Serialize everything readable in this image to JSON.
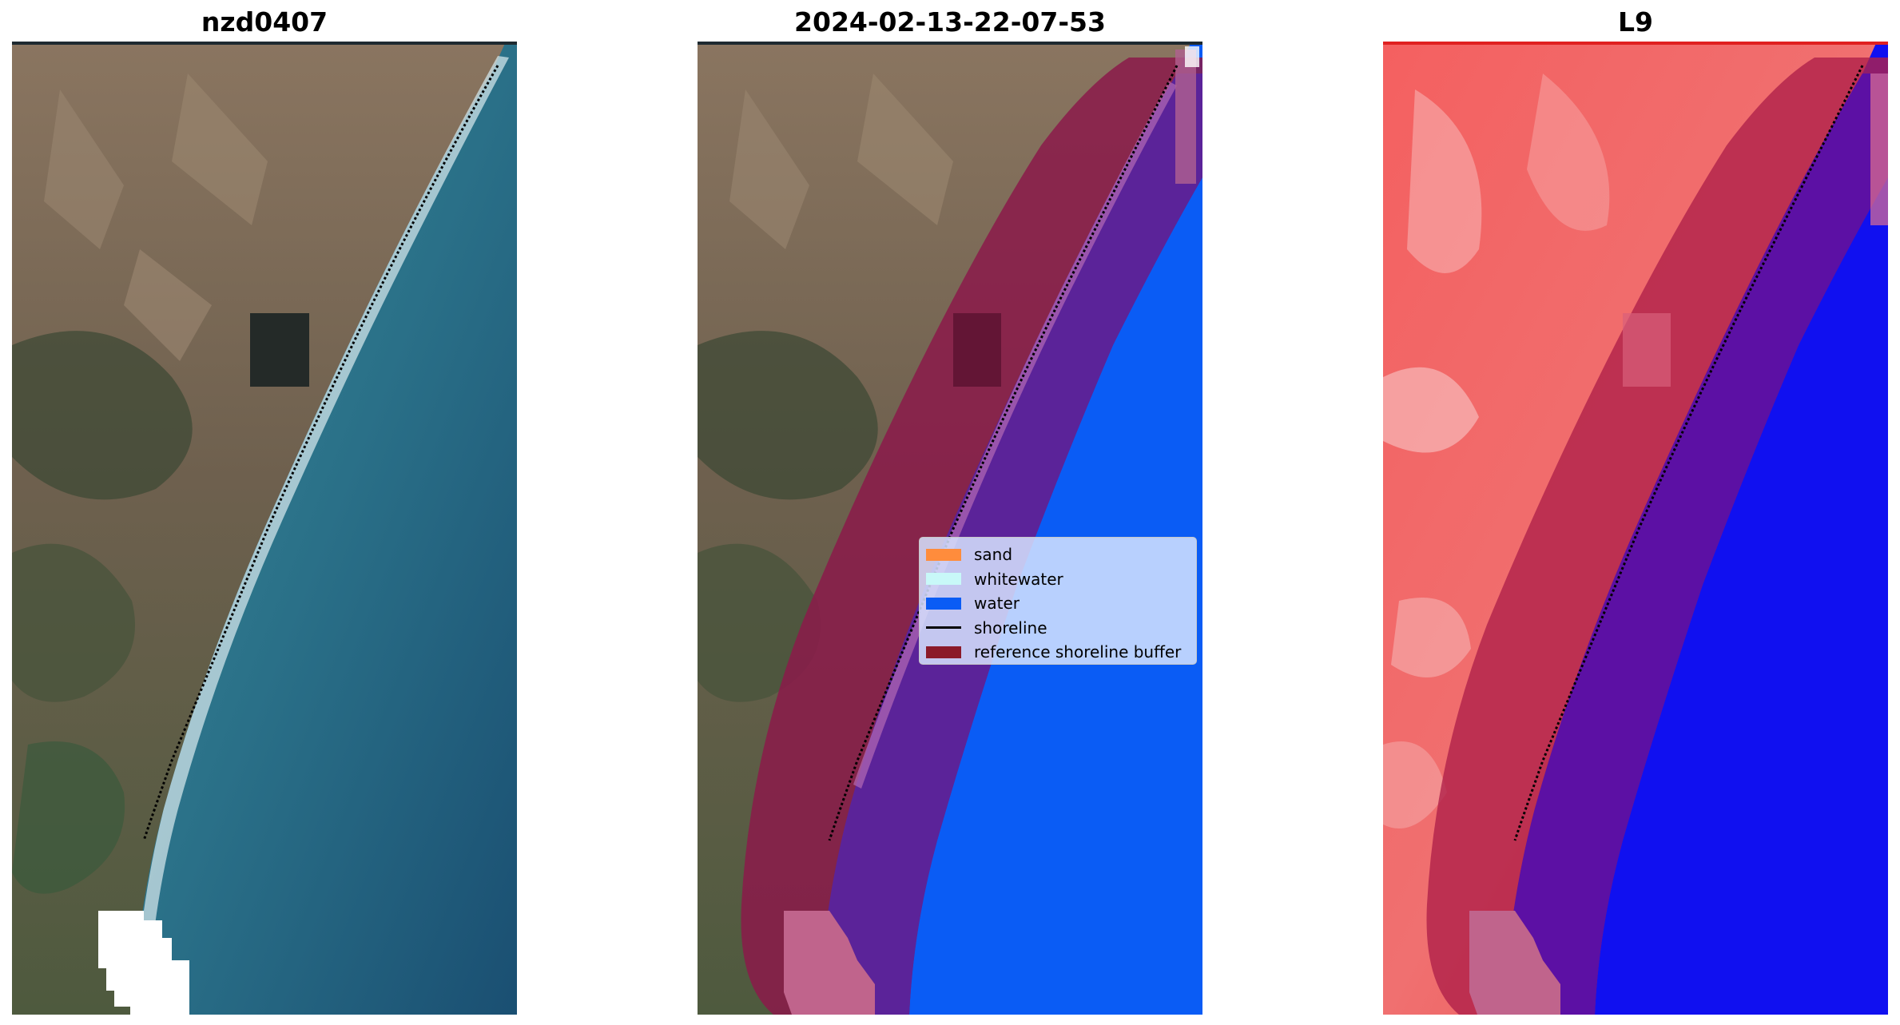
{
  "titles": {
    "left": "nzd0407",
    "middle": "2024-02-13-22-07-53",
    "right": "L9"
  },
  "legend": {
    "items": [
      {
        "label": "sand",
        "kind": "patch",
        "color": "#ff8c3c"
      },
      {
        "label": "whitewater",
        "kind": "patch",
        "color": "#c8f8f8"
      },
      {
        "label": "water",
        "kind": "patch",
        "color": "#0a5cf5"
      },
      {
        "label": "shoreline",
        "kind": "line",
        "color": "#000000"
      },
      {
        "label": "reference shoreline buffer",
        "kind": "patch",
        "color": "#8b1a2a"
      }
    ]
  },
  "colors": {
    "land_brown": "#7a6a58",
    "land_green": "#3e4a36",
    "sea_teal": "#2f7f8e",
    "sea_deep": "#1d5577",
    "water_class": "#0a5cf5",
    "buffer": "#8b1a4a",
    "buffer_over_water": "#5a249c",
    "index_land": "#f05050",
    "index_water": "#1010f0"
  }
}
